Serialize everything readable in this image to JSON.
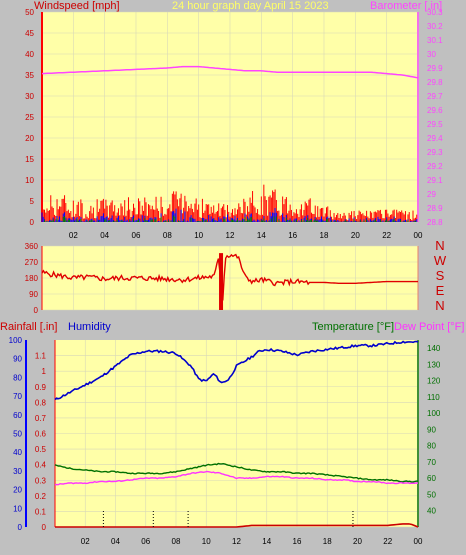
{
  "header": {
    "left_title": "Windspeed [mph]",
    "center_title": "24 hour graph day   April 15 2023",
    "right_title": "Barometer [.in]"
  },
  "panel3_header": {
    "rainfall_title": "Rainfall [.in]",
    "humidity_title": "Humidity",
    "temperature_title": "Temperature [°F]",
    "dewpoint_title": "Dew Point [°F]"
  },
  "colors": {
    "background": "#c0c0c0",
    "plot_bg": "#ffffa8",
    "wind": "#ff0000",
    "gust": "#0000ff",
    "wind_green": "#008000",
    "barometer": "#ff44ff",
    "direction": "#e00000",
    "humidity": "#0000cc",
    "temperature": "#007000",
    "dewpoint": "#ff33ff",
    "rain": "#cc0000",
    "title_yellow": "#ffff66"
  },
  "x_ticks": [
    "02",
    "04",
    "06",
    "08",
    "10",
    "12",
    "14",
    "16",
    "18",
    "20",
    "22",
    "00"
  ],
  "chart_data": [
    {
      "type": "line",
      "title": "24 hour graph day   April 15 2023",
      "series": [
        {
          "name": "Windspeed [mph]",
          "axis": "left",
          "x": [
            0,
            1,
            2,
            3,
            4,
            5,
            6,
            7,
            8,
            8.5,
            9,
            9.2,
            9.5,
            10,
            11,
            12,
            13,
            13.5,
            14,
            14.5,
            15,
            16,
            17,
            18,
            19,
            20,
            21,
            22,
            23,
            24
          ],
          "values": [
            3,
            4,
            3,
            2.5,
            3,
            3,
            3,
            3.5,
            3,
            4,
            5,
            6,
            4,
            3,
            2.5,
            2,
            3,
            4,
            5,
            4.5,
            4,
            3.5,
            3,
            2,
            1.5,
            1.5,
            1.5,
            1.5,
            1.5,
            1.5
          ]
        },
        {
          "name": "Barometer [.in]",
          "axis": "right",
          "x": [
            0,
            2,
            4,
            6,
            8,
            9,
            10,
            11,
            12,
            13,
            14,
            15,
            16,
            17,
            18,
            19,
            20,
            21,
            22,
            23,
            24
          ],
          "values": [
            29.86,
            29.87,
            29.88,
            29.89,
            29.9,
            29.91,
            29.91,
            29.9,
            29.89,
            29.88,
            29.88,
            29.87,
            29.87,
            29.87,
            29.87,
            29.87,
            29.87,
            29.87,
            29.86,
            29.85,
            29.83
          ]
        }
      ],
      "y_left_ticks": [
        "0",
        "5",
        "10",
        "15",
        "20",
        "25",
        "30",
        "35",
        "40",
        "45",
        "50"
      ],
      "y_left_range": [
        0,
        50
      ],
      "y_right_ticks": [
        "28.8",
        "28.9",
        "29",
        "29.1",
        "29.2",
        "29.3",
        "29.4",
        "29.5",
        "29.6",
        "29.7",
        "29.8",
        "29.9",
        "30",
        "30.1",
        "30.2",
        "30.3"
      ],
      "y_right_range": [
        28.8,
        30.3
      ],
      "xlabel": "",
      "grid": true
    },
    {
      "type": "line",
      "series": [
        {
          "name": "Wind direction",
          "x": [
            0,
            1,
            2,
            3,
            4,
            5,
            6,
            7,
            8,
            9,
            10,
            11,
            11.3,
            11.5,
            11.7,
            12,
            12.5,
            13,
            13.5,
            14,
            15,
            16,
            17,
            18,
            19,
            20,
            21,
            22,
            23,
            24
          ],
          "values": [
            210,
            195,
            180,
            185,
            175,
            180,
            180,
            178,
            175,
            170,
            180,
            190,
            300,
            0,
            300,
            310,
            300,
            180,
            160,
            170,
            150,
            160,
            155,
            155,
            150,
            150,
            155,
            160,
            160,
            160
          ]
        }
      ],
      "y_left_ticks": [
        "0",
        "90",
        "180",
        "270",
        "360"
      ],
      "y_range": [
        0,
        360
      ],
      "y_right_ticks": [
        "N",
        "W",
        "S",
        "E",
        "N"
      ],
      "grid": true
    },
    {
      "type": "line",
      "series": [
        {
          "name": "Humidity",
          "axis": "left",
          "x": [
            0,
            1,
            2,
            3,
            4,
            5,
            6,
            7,
            8,
            9,
            9.5,
            10,
            10.5,
            11,
            11.5,
            12,
            13,
            13.5,
            14,
            15,
            16,
            17,
            18,
            19,
            20,
            21,
            22,
            23,
            24
          ],
          "values": [
            68,
            72,
            76,
            80,
            86,
            92,
            94,
            94,
            93,
            86,
            79,
            78,
            82,
            77,
            79,
            86,
            91,
            94,
            95,
            94,
            92,
            94,
            95,
            96,
            97,
            97,
            98,
            99,
            99
          ]
        },
        {
          "name": "Temperature [°F]",
          "axis": "right",
          "x": [
            0,
            1,
            2,
            3,
            4,
            5,
            6,
            7,
            8,
            9,
            10,
            11,
            12,
            13,
            14,
            15,
            16,
            17,
            18,
            19,
            20,
            21,
            22,
            23,
            24
          ],
          "values": [
            68,
            66,
            65,
            64,
            64,
            63,
            63,
            63,
            64,
            66,
            68,
            69,
            67,
            65,
            64,
            64,
            63,
            63,
            62,
            61,
            60,
            59,
            59,
            58,
            58
          ]
        },
        {
          "name": "Dew Point [°F]",
          "axis": "right",
          "x": [
            0,
            1,
            2,
            3,
            4,
            5,
            6,
            7,
            8,
            9,
            10,
            11,
            12,
            13,
            14,
            15,
            16,
            17,
            18,
            19,
            20,
            21,
            22,
            23,
            24
          ],
          "values": [
            56,
            57,
            57,
            58,
            58,
            59,
            60,
            60,
            61,
            63,
            64,
            63,
            60,
            60,
            61,
            61,
            60,
            60,
            59,
            59,
            58,
            58,
            57,
            57,
            57
          ]
        },
        {
          "name": "Rainfall [.in]",
          "axis": "inner",
          "x": [
            0,
            12,
            13,
            22,
            23,
            23.5,
            24
          ],
          "values": [
            0,
            0,
            0.01,
            0.01,
            0.02,
            0.02,
            0
          ]
        }
      ],
      "y_left_ticks": [
        "0",
        "10",
        "20",
        "30",
        "40",
        "50",
        "60",
        "70",
        "80",
        "90",
        "100"
      ],
      "y_left_range": [
        0,
        100
      ],
      "y_inner_ticks": [
        "0",
        "0.1",
        "0.2",
        "0.3",
        "0.4",
        "0.5",
        "0.6",
        "0.7",
        "0.8",
        "0.9",
        "1",
        "1.1"
      ],
      "y_inner_range": [
        0,
        1.2
      ],
      "y_right_ticks": [
        "40",
        "50",
        "60",
        "70",
        "80",
        "90",
        "100",
        "110",
        "120",
        "130",
        "140"
      ],
      "y_right_range": [
        30,
        145
      ],
      "grid": true
    }
  ]
}
